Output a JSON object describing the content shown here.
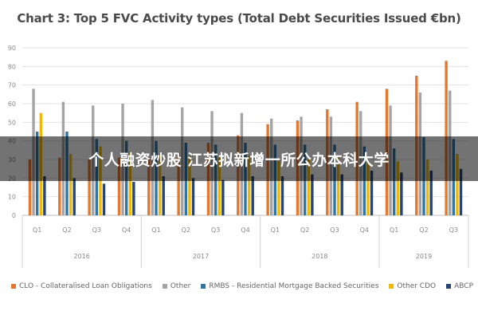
{
  "chart_data": {
    "type": "bar",
    "title": "Chart 3: Top 5 FVC Activity types (Total Debt Securities Issued €bn)",
    "ylim": [
      0,
      90
    ],
    "yticks": [
      0,
      10,
      20,
      30,
      40,
      50,
      60,
      70,
      80,
      90
    ],
    "grid": true,
    "legend_position": "bottom",
    "categories": [
      "Q1",
      "Q2",
      "Q3",
      "Q4",
      "Q1",
      "Q2",
      "Q3",
      "Q4",
      "Q1",
      "Q2",
      "Q3",
      "Q4",
      "Q1",
      "Q2",
      "Q3"
    ],
    "years": [
      {
        "label": "2016",
        "quarters": 4
      },
      {
        "label": "2017",
        "quarters": 4
      },
      {
        "label": "2018",
        "quarters": 4
      },
      {
        "label": "2019",
        "quarters": 3
      }
    ],
    "series": [
      {
        "name": "CLO - Collateralised Loan Obligations",
        "color": "#e8762d",
        "values": [
          30,
          31,
          30,
          31,
          31,
          34,
          39,
          43,
          49,
          51,
          57,
          61,
          68,
          75,
          83
        ]
      },
      {
        "name": "Other",
        "color": "#a5a5a5",
        "values": [
          68,
          61,
          59,
          60,
          62,
          58,
          56,
          55,
          52,
          53,
          53,
          56,
          59,
          66,
          67
        ]
      },
      {
        "name": "RMBS - Residential Mortgage Backed Securities",
        "color": "#2e75a8",
        "values": [
          45,
          45,
          41,
          40,
          40,
          39,
          38,
          39,
          38,
          38,
          38,
          37,
          36,
          42,
          41
        ]
      },
      {
        "name": "Other CDO",
        "color": "#f5b800",
        "values": [
          55,
          33,
          37,
          34,
          33,
          32,
          31,
          32,
          30,
          30,
          31,
          29,
          29,
          30,
          33
        ]
      },
      {
        "name": "ABCP",
        "color": "#264478",
        "values": [
          21,
          20,
          17,
          18,
          21,
          20,
          19,
          21,
          21,
          22,
          22,
          24,
          23,
          24,
          25
        ]
      }
    ]
  },
  "overlay": {
    "text": "个人融资炒股 江苏拟新增一所公办本科大学"
  }
}
